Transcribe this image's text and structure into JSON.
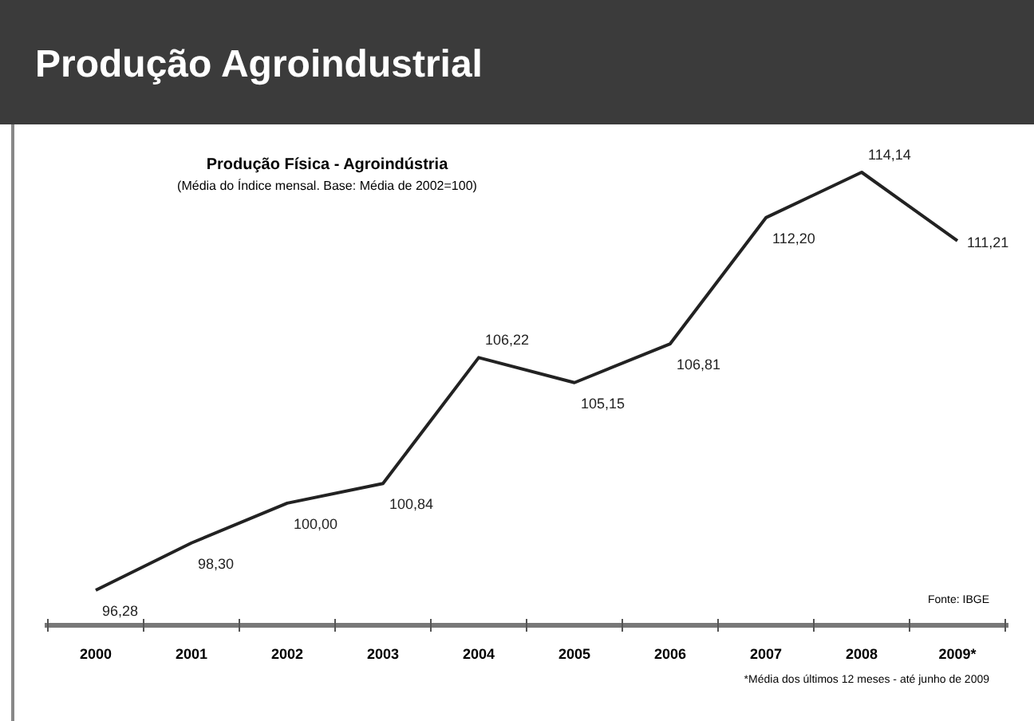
{
  "chart_data": {
    "type": "line",
    "title": "Produção Agroindustrial",
    "subtitle": "Produção Física - Agroindústria",
    "annotations": [
      "(Média do Índice mensal. Base: Média de 2002=100)",
      "Fonte: IBGE",
      "*Média dos últimos 12 meses - até junho de 2009"
    ],
    "categories": [
      "2000",
      "2001",
      "2002",
      "2003",
      "2004",
      "2005",
      "2006",
      "2007",
      "2008",
      "2009*"
    ],
    "series": [
      {
        "color": "#222222",
        "values": [
          96.28,
          98.3,
          100.0,
          100.84,
          106.22,
          105.15,
          106.81,
          112.2,
          114.14,
          111.21
        ],
        "value_labels": [
          "96,28",
          "98,30",
          "100,00",
          "100,84",
          "106,22",
          "105,15",
          "106,81",
          "112,20",
          "114,14",
          "111,21"
        ]
      }
    ],
    "marker": "none",
    "line_style": "solid"
  }
}
